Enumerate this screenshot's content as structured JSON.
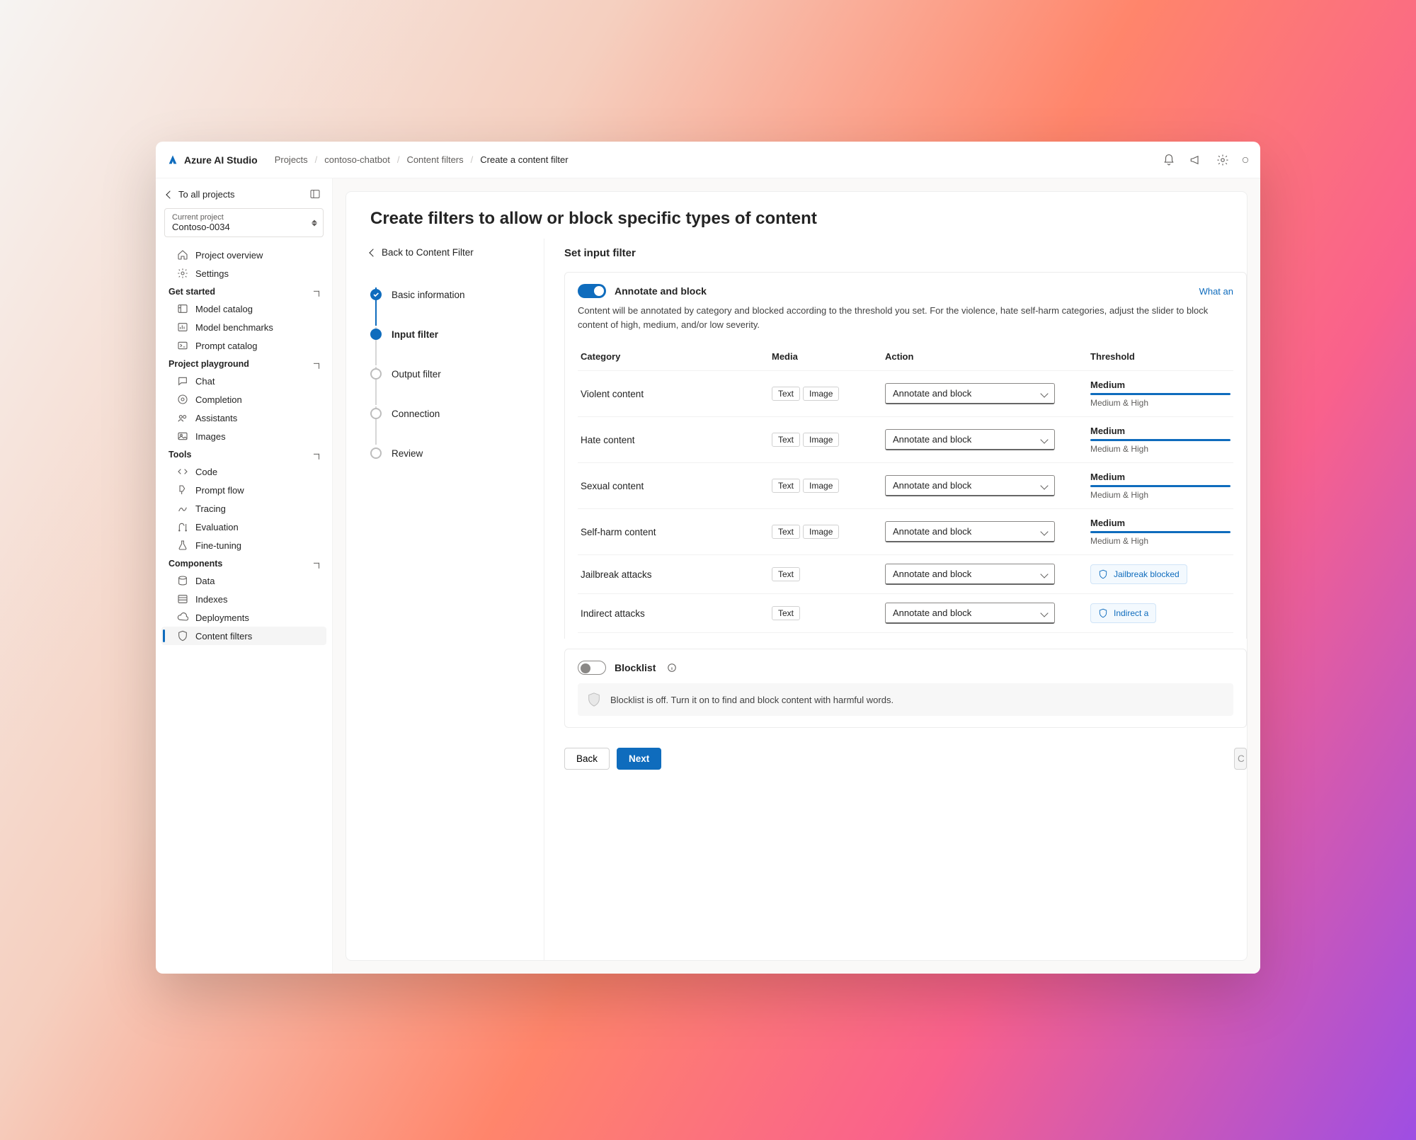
{
  "brand": "Azure AI Studio",
  "breadcrumbs": [
    "Projects",
    "contoso-chatbot",
    "Content filters",
    "Create a content filter"
  ],
  "sidebar": {
    "to_all": "To all projects",
    "project_label": "Current project",
    "project_value": "Contoso-0034",
    "top_items": [
      {
        "label": "Project overview",
        "icon": "home"
      },
      {
        "label": "Settings",
        "icon": "gear"
      }
    ],
    "groups": [
      {
        "title": "Get started",
        "items": [
          {
            "label": "Model catalog",
            "icon": "catalog"
          },
          {
            "label": "Model benchmarks",
            "icon": "chart"
          },
          {
            "label": "Prompt catalog",
            "icon": "prompt"
          }
        ]
      },
      {
        "title": "Project playground",
        "items": [
          {
            "label": "Chat",
            "icon": "chat"
          },
          {
            "label": "Completion",
            "icon": "completion"
          },
          {
            "label": "Assistants",
            "icon": "assistants"
          },
          {
            "label": "Images",
            "icon": "images"
          }
        ]
      },
      {
        "title": "Tools",
        "items": [
          {
            "label": "Code",
            "icon": "code"
          },
          {
            "label": "Prompt flow",
            "icon": "flow"
          },
          {
            "label": "Tracing",
            "icon": "tracing"
          },
          {
            "label": "Evaluation",
            "icon": "evaluation"
          },
          {
            "label": "Fine-tuning",
            "icon": "flask"
          }
        ]
      },
      {
        "title": "Components",
        "items": [
          {
            "label": "Data",
            "icon": "data"
          },
          {
            "label": "Indexes",
            "icon": "indexes"
          },
          {
            "label": "Deployments",
            "icon": "deploy"
          },
          {
            "label": "Content filters",
            "icon": "shield",
            "active": true
          }
        ]
      }
    ]
  },
  "page": {
    "title": "Create filters to allow or block specific types of content",
    "back_link": "Back to Content Filter",
    "steps": [
      "Basic information",
      "Input filter",
      "Output filter",
      "Connection",
      "Review"
    ],
    "step_done_index": 0,
    "step_current_index": 1,
    "form_title": "Set input filter",
    "annotate": {
      "label": "Annotate and block",
      "link": "What an",
      "desc": "Content will be annotated by category and blocked according to the threshold you set. For the violence, hate self-harm categories, adjust the slider to block content of high, medium, and/or low severity."
    },
    "columns": [
      "Category",
      "Media",
      "Action",
      "Threshold"
    ],
    "actions_default": "Annotate and block",
    "rows": [
      {
        "category": "Violent content",
        "media": [
          "Text",
          "Image"
        ],
        "threshold_label": "Medium",
        "threshold_sub": "Medium & High"
      },
      {
        "category": "Hate content",
        "media": [
          "Text",
          "Image"
        ],
        "threshold_label": "Medium",
        "threshold_sub": "Medium & High"
      },
      {
        "category": "Sexual content",
        "media": [
          "Text",
          "Image"
        ],
        "threshold_label": "Medium",
        "threshold_sub": "Medium & High"
      },
      {
        "category": "Self-harm content",
        "media": [
          "Text",
          "Image"
        ],
        "threshold_label": "Medium",
        "threshold_sub": "Medium & High"
      },
      {
        "category": "Jailbreak attacks",
        "media": [
          "Text"
        ],
        "shield": "Jailbreak blocked"
      },
      {
        "category": "Indirect attacks",
        "media": [
          "Text"
        ],
        "shield": "Indirect a"
      }
    ],
    "blocklist": {
      "label": "Blocklist",
      "msg": "Blocklist is off. Turn it on to find and block content with harmful words."
    },
    "buttons": {
      "back": "Back",
      "next": "Next"
    }
  },
  "colors": {
    "primary": "#0f6cbd",
    "border": "#e1dfdd"
  }
}
